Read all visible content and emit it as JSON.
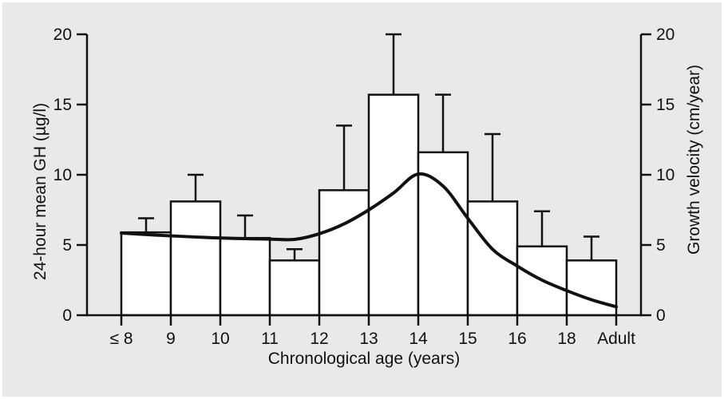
{
  "figure": {
    "background_color": "#e9e9e9",
    "line_color": "#111111",
    "bar_fill_color": "#ffffff"
  },
  "chart_data": {
    "type": "bar",
    "title": "",
    "xlabel": "Chronological age (years)",
    "ylabel_left": "24-hour mean GH (µg/l)",
    "ylabel_right": "Growth velocity (cm/year)",
    "ylim": [
      0,
      20
    ],
    "y_ticks": [
      0,
      5,
      10,
      15,
      20
    ],
    "grid": "off",
    "legend": "none",
    "x_tick_labels": [
      "≤ 8",
      "9",
      "10",
      "11",
      "12",
      "13",
      "14",
      "15",
      "16",
      "18",
      "Adult"
    ],
    "bars": {
      "name": "24-hour mean GH (µg/l)",
      "bins": [
        "≤8–9",
        "9–10",
        "10–11",
        "11–12",
        "12–13",
        "13–14",
        "14–15",
        "15–16",
        "16–18",
        "18–Adult"
      ],
      "values": [
        5.9,
        8.1,
        5.5,
        3.9,
        8.9,
        15.7,
        11.6,
        8.1,
        4.9,
        3.9
      ],
      "error_tops": [
        6.9,
        10.0,
        7.1,
        4.7,
        13.5,
        20.0,
        15.7,
        12.9,
        7.4,
        5.6
      ]
    },
    "line": {
      "name": "Growth velocity (cm/year)",
      "x_tick_units": [
        0,
        1,
        2,
        3,
        3.5,
        4,
        4.5,
        5,
        5.5,
        6,
        6.5,
        7,
        7.5,
        8,
        8.5,
        9,
        9.5,
        10
      ],
      "values": [
        5.85,
        5.65,
        5.5,
        5.42,
        5.4,
        5.8,
        6.5,
        7.5,
        8.7,
        10.05,
        9.2,
        6.9,
        4.7,
        3.5,
        2.5,
        1.75,
        1.1,
        0.6
      ]
    }
  }
}
